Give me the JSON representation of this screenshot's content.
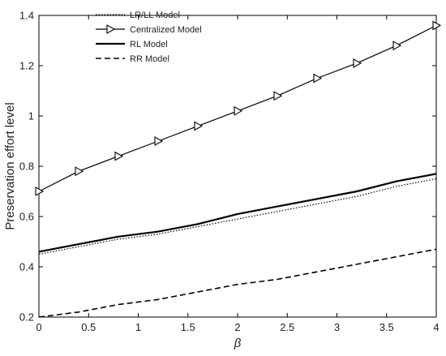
{
  "chart_data": {
    "type": "line",
    "xlabel": "β",
    "ylabel": "Preservation effort level",
    "xlim": [
      0,
      4
    ],
    "ylim": [
      0.2,
      1.4
    ],
    "x_ticks": [
      "0",
      "0.5",
      "1",
      "1.5",
      "2",
      "2.5",
      "3",
      "3.5",
      "4"
    ],
    "y_ticks": [
      "0.2",
      "0.4",
      "0.6",
      "0.8",
      "1",
      "1.2",
      "1.4"
    ],
    "grid": false,
    "legend_position": "top-left",
    "x": [
      0,
      0.4,
      0.8,
      1.2,
      1.6,
      2.0,
      2.4,
      2.8,
      3.2,
      3.6,
      4.0
    ],
    "series": [
      {
        "name": "LR/LL Model",
        "style": "dotted",
        "marker": "none",
        "values": [
          0.45,
          0.48,
          0.51,
          0.53,
          0.56,
          0.59,
          0.62,
          0.65,
          0.68,
          0.72,
          0.75
        ]
      },
      {
        "name": "Centralized Model",
        "style": "solid",
        "marker": "triangle-right",
        "values": [
          0.7,
          0.78,
          0.84,
          0.9,
          0.96,
          1.02,
          1.08,
          1.15,
          1.21,
          1.28,
          1.36
        ]
      },
      {
        "name": "RL Model",
        "style": "solid-thick",
        "marker": "none",
        "values": [
          0.46,
          0.49,
          0.52,
          0.54,
          0.57,
          0.61,
          0.64,
          0.67,
          0.7,
          0.74,
          0.77
        ]
      },
      {
        "name": "RR Model",
        "style": "dashed",
        "marker": "none",
        "values": [
          0.2,
          0.22,
          0.25,
          0.27,
          0.3,
          0.33,
          0.35,
          0.38,
          0.41,
          0.44,
          0.47
        ]
      }
    ]
  }
}
